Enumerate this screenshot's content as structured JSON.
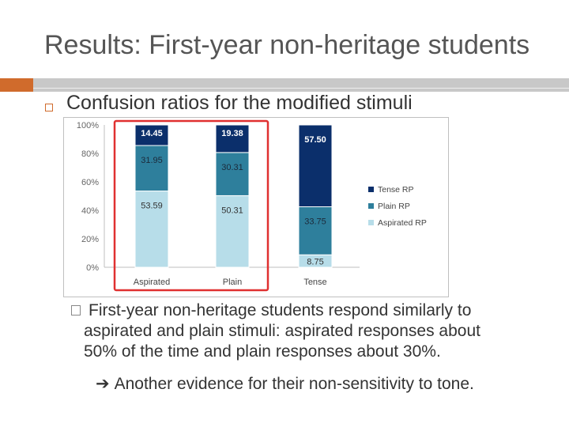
{
  "slide": {
    "title": "Results: First-year non-heritage students",
    "bullet_1": "Confusion ratios for the modified stimuli",
    "sub_bullet_lines": [
      "First-year non-heritage students respond similarly to",
      "aspirated and plain stimuli: aspirated responses about",
      "50% of the time and plain responses about 30%."
    ],
    "arrow_icon": "right-arrow-icon",
    "arrow_text": "Another evidence for their non-sensitivity to tone."
  },
  "colors": {
    "title": "#555555",
    "accent": "#d06b2c",
    "highlight_box": "#e03030"
  },
  "chart_data": {
    "type": "bar",
    "stacked": true,
    "percent": true,
    "categories": [
      "Aspirated",
      "Plain",
      "Tense"
    ],
    "series": [
      {
        "name": "Aspirated RP",
        "values": [
          53.59,
          50.31,
          8.75
        ],
        "labels": [
          "53.59",
          "50.31",
          "8.75"
        ],
        "color": "#b7dde9"
      },
      {
        "name": "Plain RP",
        "values": [
          31.95,
          30.31,
          33.75
        ],
        "labels": [
          "31.95",
          "30.31",
          "33.75"
        ],
        "color": "#2e7f9c"
      },
      {
        "name": "Tense RP",
        "values": [
          14.45,
          19.38,
          57.5
        ],
        "labels": [
          "14.45",
          "19.38",
          "57.50"
        ],
        "color": "#0b2f6b"
      }
    ],
    "legend_order": [
      "Tense RP",
      "Plain RP",
      "Aspirated RP"
    ],
    "y_ticks": [
      "0%",
      "20%",
      "40%",
      "60%",
      "80%",
      "100%"
    ],
    "ylim": [
      0,
      100
    ],
    "legend_position": "right",
    "highlight": [
      "Aspirated",
      "Plain"
    ]
  }
}
